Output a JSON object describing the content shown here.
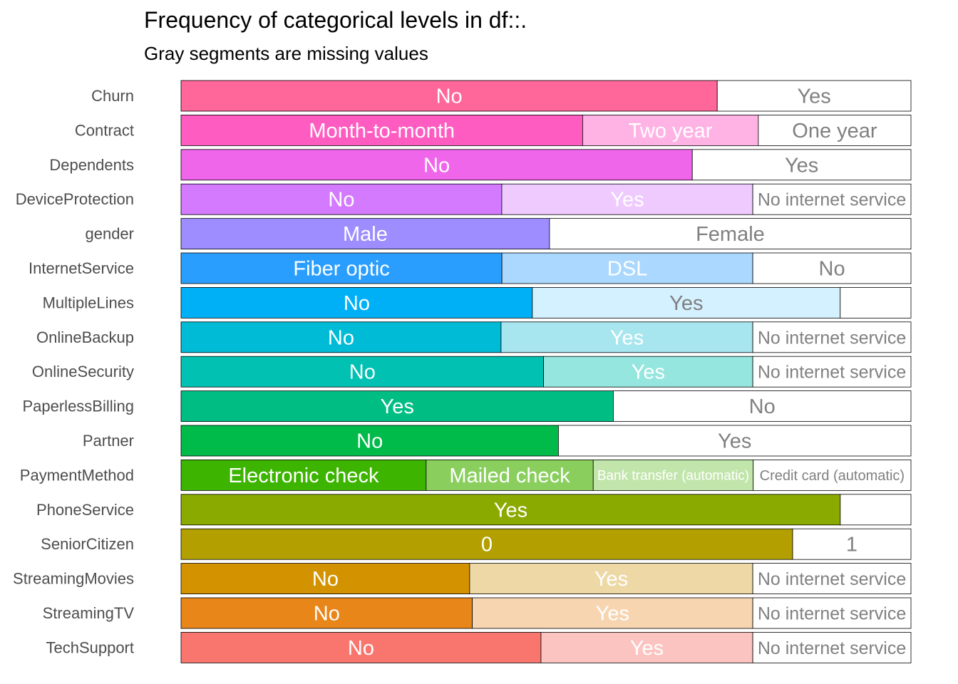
{
  "chart_data": {
    "type": "bar",
    "orientation": "horizontal-stacked-proportion",
    "title": "Frequency of categorical levels in df::.",
    "subtitle": "Gray segments are missing values",
    "xlim": [
      0,
      1
    ],
    "rows": [
      {
        "variable": "Churn",
        "segments": [
          {
            "level": "No",
            "proportion": 0.7346,
            "color": "#FF6699",
            "label_color": "#FFFFFF"
          },
          {
            "level": "Yes",
            "proportion": 0.2654,
            "color": "#FFFFFF",
            "label_color": "#808080"
          }
        ]
      },
      {
        "variable": "Contract",
        "segments": [
          {
            "level": "Month-to-month",
            "proportion": 0.5502,
            "color": "#FF5CC2",
            "label_color": "#FFFFFF"
          },
          {
            "level": "Two year",
            "proportion": 0.2407,
            "color": "#FFB3E5",
            "label_color": "#FFFFFF"
          },
          {
            "level": "One year",
            "proportion": 0.2091,
            "color": "#FFFFFF",
            "label_color": "#808080"
          }
        ]
      },
      {
        "variable": "Dependents",
        "segments": [
          {
            "level": "No",
            "proportion": 0.7004,
            "color": "#F066EA",
            "label_color": "#FFFFFF"
          },
          {
            "level": "Yes",
            "proportion": 0.2996,
            "color": "#FFFFFF",
            "label_color": "#808080"
          }
        ]
      },
      {
        "variable": "DeviceProtection",
        "segments": [
          {
            "level": "No",
            "proportion": 0.4394,
            "color": "#D37AFF",
            "label_color": "#FFFFFF"
          },
          {
            "level": "Yes",
            "proportion": 0.3439,
            "color": "#EFCAFF",
            "label_color": "#FFFFFF"
          },
          {
            "level": "No internet service",
            "proportion": 0.2167,
            "color": "#FFFFFF",
            "label_color": "#808080"
          }
        ]
      },
      {
        "variable": "gender",
        "segments": [
          {
            "level": "Male",
            "proportion": 0.5048,
            "color": "#9D8DFF",
            "label_color": "#FFFFFF"
          },
          {
            "level": "Female",
            "proportion": 0.4952,
            "color": "#FFFFFF",
            "label_color": "#808080"
          }
        ]
      },
      {
        "variable": "InternetService",
        "segments": [
          {
            "level": "Fiber optic",
            "proportion": 0.4396,
            "color": "#2A9EFF",
            "label_color": "#FFFFFF"
          },
          {
            "level": "DSL",
            "proportion": 0.3437,
            "color": "#AAD8FF",
            "label_color": "#FFFFFF"
          },
          {
            "level": "No",
            "proportion": 0.2167,
            "color": "#FFFFFF",
            "label_color": "#808080"
          }
        ]
      },
      {
        "variable": "MultipleLines",
        "segments": [
          {
            "level": "No",
            "proportion": 0.4813,
            "color": "#00B0F6",
            "label_color": "#FFFFFF"
          },
          {
            "level": "Yes",
            "proportion": 0.4218,
            "color": "#D4F1FF",
            "label_color": "#808080"
          },
          {
            "level": "",
            "proportion": 0.0969,
            "color": "#FFFFFF",
            "label_color": "#808080"
          }
        ]
      },
      {
        "variable": "OnlineBackup",
        "segments": [
          {
            "level": "No",
            "proportion": 0.4384,
            "color": "#00BBD6",
            "label_color": "#FFFFFF"
          },
          {
            "level": "Yes",
            "proportion": 0.3449,
            "color": "#A8E6EF",
            "label_color": "#FFFFFF"
          },
          {
            "level": "No internet service",
            "proportion": 0.2167,
            "color": "#FFFFFF",
            "label_color": "#808080"
          }
        ]
      },
      {
        "variable": "OnlineSecurity",
        "segments": [
          {
            "level": "No",
            "proportion": 0.4967,
            "color": "#00C1B2",
            "label_color": "#FFFFFF"
          },
          {
            "level": "Yes",
            "proportion": 0.2866,
            "color": "#94E6DE",
            "label_color": "#FFFFFF"
          },
          {
            "level": "No internet service",
            "proportion": 0.2167,
            "color": "#FFFFFF",
            "label_color": "#808080"
          }
        ]
      },
      {
        "variable": "PaperlessBilling",
        "segments": [
          {
            "level": "Yes",
            "proportion": 0.5922,
            "color": "#00BE83",
            "label_color": "#FFFFFF"
          },
          {
            "level": "No",
            "proportion": 0.4078,
            "color": "#FFFFFF",
            "label_color": "#808080"
          }
        ]
      },
      {
        "variable": "Partner",
        "segments": [
          {
            "level": "No",
            "proportion": 0.517,
            "color": "#00BA4A",
            "label_color": "#FFFFFF"
          },
          {
            "level": "Yes",
            "proportion": 0.483,
            "color": "#FFFFFF",
            "label_color": "#808080"
          }
        ]
      },
      {
        "variable": "PaymentMethod",
        "segments": [
          {
            "level": "Electronic check",
            "proportion": 0.3358,
            "color": "#3CB400",
            "label_color": "#FFFFFF"
          },
          {
            "level": "Mailed check",
            "proportion": 0.2289,
            "color": "#8ACF5E",
            "label_color": "#FFFFFF"
          },
          {
            "level": "Bank transfer (automatic)",
            "proportion": 0.2192,
            "color": "#C2E5AB",
            "label_color": "#FFFFFF"
          },
          {
            "level": "Credit card (automatic)",
            "proportion": 0.2161,
            "color": "#FFFFFF",
            "label_color": "#808080"
          }
        ]
      },
      {
        "variable": "PhoneService",
        "segments": [
          {
            "level": "Yes",
            "proportion": 0.9032,
            "color": "#8AAA00",
            "label_color": "#FFFFFF"
          },
          {
            "level": "",
            "proportion": 0.0968,
            "color": "#FFFFFF",
            "label_color": "#808080"
          }
        ]
      },
      {
        "variable": "SeniorCitizen",
        "segments": [
          {
            "level": "0",
            "proportion": 0.8379,
            "color": "#B3A000",
            "label_color": "#FFFFFF"
          },
          {
            "level": "1",
            "proportion": 0.1621,
            "color": "#FFFFFF",
            "label_color": "#808080"
          }
        ]
      },
      {
        "variable": "StreamingMovies",
        "segments": [
          {
            "level": "No",
            "proportion": 0.3954,
            "color": "#D39200",
            "label_color": "#FFFFFF"
          },
          {
            "level": "Yes",
            "proportion": 0.3879,
            "color": "#EED9A6",
            "label_color": "#FFFFFF"
          },
          {
            "level": "No internet service",
            "proportion": 0.2167,
            "color": "#FFFFFF",
            "label_color": "#808080"
          }
        ]
      },
      {
        "variable": "StreamingTV",
        "segments": [
          {
            "level": "No",
            "proportion": 0.399,
            "color": "#E8861A",
            "label_color": "#FFFFFF"
          },
          {
            "level": "Yes",
            "proportion": 0.3843,
            "color": "#F6D5B0",
            "label_color": "#FFFFFF"
          },
          {
            "level": "No internet service",
            "proportion": 0.2167,
            "color": "#FFFFFF",
            "label_color": "#808080"
          }
        ]
      },
      {
        "variable": "TechSupport",
        "segments": [
          {
            "level": "No",
            "proportion": 0.4931,
            "color": "#F8766D",
            "label_color": "#FFFFFF"
          },
          {
            "level": "Yes",
            "proportion": 0.2902,
            "color": "#FBC4C0",
            "label_color": "#FFFFFF"
          },
          {
            "level": "No internet service",
            "proportion": 0.2167,
            "color": "#FFFFFF",
            "label_color": "#808080"
          }
        ]
      }
    ]
  }
}
